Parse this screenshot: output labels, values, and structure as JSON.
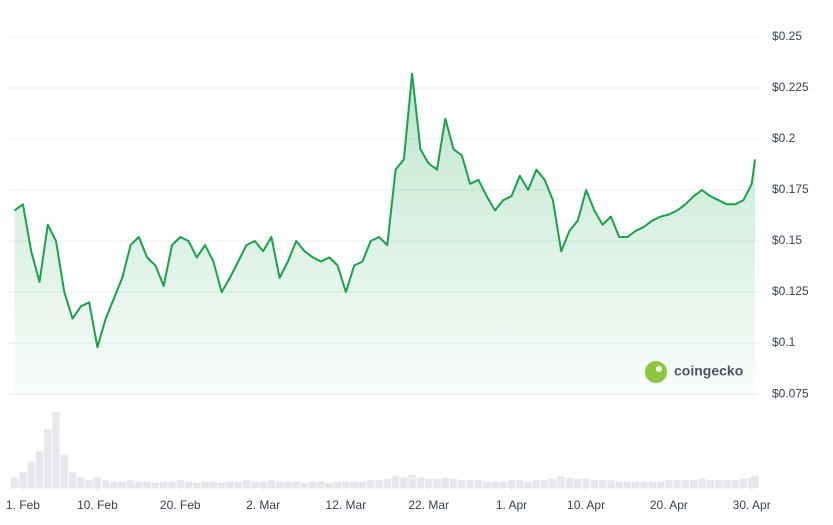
{
  "chart_data": {
    "type": "line",
    "color": "#18a34a",
    "volume_color": "#e5e7eb",
    "watermark": "coingecko",
    "x": [
      -1,
      0,
      1,
      2,
      3,
      4,
      5,
      6,
      7,
      8,
      9,
      10,
      11,
      12,
      13,
      14,
      15,
      16,
      17,
      18,
      19,
      20,
      21,
      22,
      23,
      24,
      25,
      26,
      27,
      28,
      29,
      30,
      31,
      32,
      33,
      34,
      35,
      36,
      37,
      38,
      39,
      40,
      41,
      42,
      43,
      44,
      45,
      46,
      47,
      48,
      49,
      50,
      51,
      52,
      53,
      54,
      55,
      56,
      57,
      58,
      59,
      60,
      61,
      62,
      63,
      64,
      65,
      66,
      67,
      68,
      69,
      70,
      71,
      72,
      73,
      74,
      75,
      76,
      77,
      78,
      79,
      80,
      81,
      82,
      83,
      84,
      85,
      86,
      87,
      88,
      88.4
    ],
    "values": [
      0.165,
      0.168,
      0.145,
      0.13,
      0.158,
      0.15,
      0.125,
      0.112,
      0.118,
      0.12,
      0.098,
      0.112,
      0.122,
      0.132,
      0.148,
      0.152,
      0.142,
      0.138,
      0.128,
      0.148,
      0.152,
      0.15,
      0.142,
      0.148,
      0.14,
      0.125,
      0.132,
      0.14,
      0.148,
      0.15,
      0.145,
      0.152,
      0.132,
      0.14,
      0.15,
      0.145,
      0.142,
      0.14,
      0.142,
      0.138,
      0.125,
      0.138,
      0.14,
      0.15,
      0.152,
      0.148,
      0.185,
      0.19,
      0.232,
      0.195,
      0.188,
      0.185,
      0.21,
      0.195,
      0.192,
      0.178,
      0.18,
      0.172,
      0.165,
      0.17,
      0.172,
      0.182,
      0.175,
      0.185,
      0.18,
      0.17,
      0.145,
      0.155,
      0.16,
      0.175,
      0.165,
      0.158,
      0.162,
      0.152,
      0.152,
      0.155,
      0.157,
      0.16,
      0.162,
      0.163,
      0.165,
      0.168,
      0.172,
      0.175,
      0.172,
      0.17,
      0.168,
      0.168,
      0.17,
      0.178,
      0.19
    ],
    "volume": [
      8,
      12,
      20,
      28,
      45,
      58,
      25,
      12,
      8,
      6,
      8,
      6,
      5,
      5,
      6,
      5,
      5,
      4,
      5,
      5,
      6,
      5,
      4,
      5,
      5,
      4,
      5,
      5,
      6,
      5,
      5,
      6,
      5,
      5,
      5,
      4,
      5,
      5,
      4,
      5,
      5,
      5,
      5,
      6,
      6,
      7,
      9,
      8,
      10,
      8,
      7,
      7,
      8,
      7,
      6,
      6,
      6,
      5,
      5,
      5,
      6,
      6,
      5,
      6,
      6,
      7,
      9,
      8,
      7,
      7,
      6,
      6,
      6,
      5,
      5,
      5,
      5,
      5,
      5,
      6,
      6,
      6,
      6,
      7,
      6,
      6,
      6,
      6,
      7,
      8,
      9
    ],
    "xlim": [
      -1.8,
      88.4
    ],
    "ylim": [
      0.0721,
      0.25
    ],
    "xticks": [
      {
        "value": 0,
        "label": "1. Feb"
      },
      {
        "value": 9,
        "label": "10. Feb"
      },
      {
        "value": 19,
        "label": "20. Feb"
      },
      {
        "value": 29,
        "label": "2. Mar"
      },
      {
        "value": 39,
        "label": "12. Mar"
      },
      {
        "value": 49,
        "label": "22. Mar"
      },
      {
        "value": 59,
        "label": "1. Apr"
      },
      {
        "value": 68,
        "label": "10. Apr"
      },
      {
        "value": 78,
        "label": "20. Apr"
      },
      {
        "value": 88,
        "label": "30. Apr"
      }
    ],
    "yticks": [
      {
        "value": 0.075,
        "label": "$0.075"
      },
      {
        "value": 0.1,
        "label": "$0.1"
      },
      {
        "value": 0.125,
        "label": "$0.125"
      },
      {
        "value": 0.15,
        "label": "$0.15"
      },
      {
        "value": 0.175,
        "label": "$0.175"
      },
      {
        "value": 0.2,
        "label": "$0.2"
      },
      {
        "value": 0.225,
        "label": "$0.225"
      },
      {
        "value": 0.25,
        "label": "$0.25"
      }
    ],
    "grid": true
  }
}
